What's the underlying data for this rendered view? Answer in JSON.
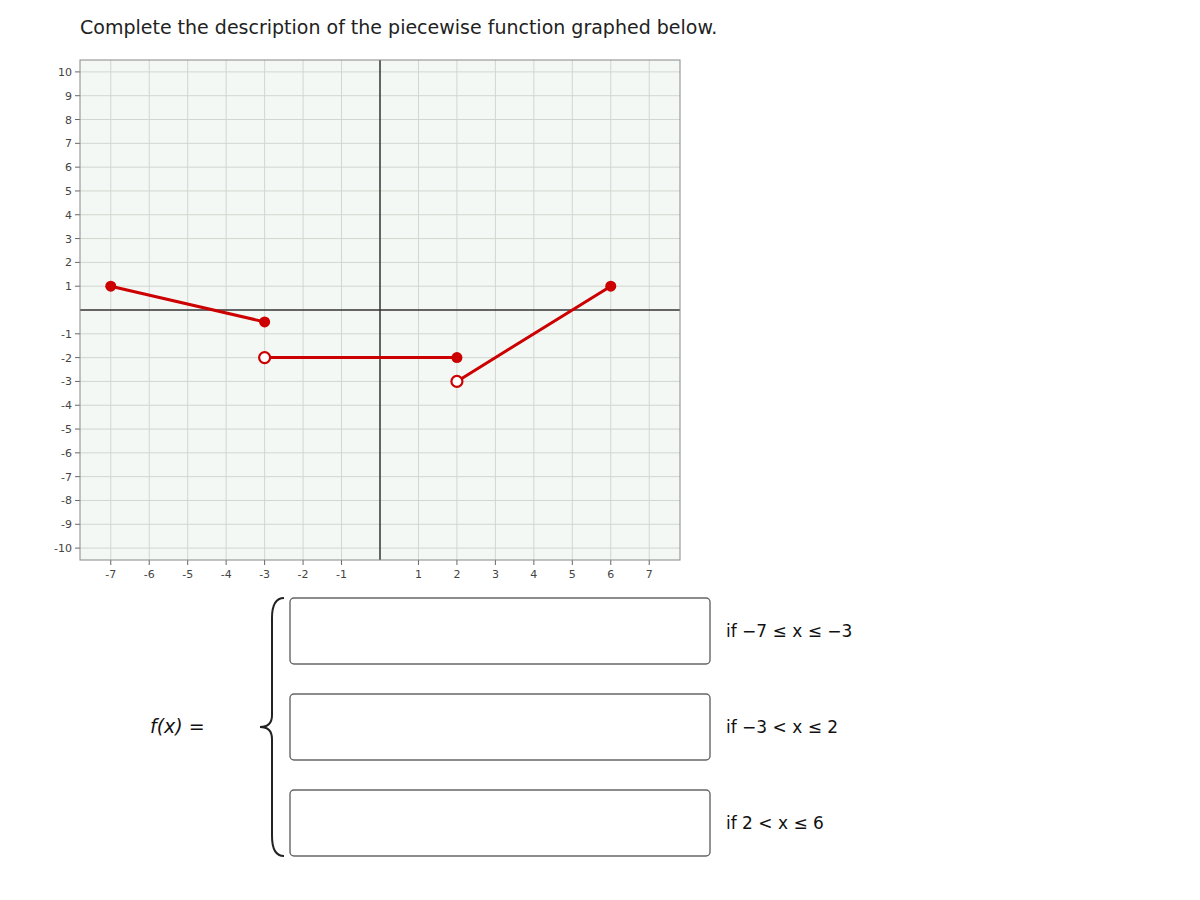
{
  "chart_data": {
    "type": "line",
    "title": "Complete the description of the piecewise function graphed below.",
    "xlim": [
      -7.8,
      7.8
    ],
    "ylim": [
      -10.5,
      10.5
    ],
    "xticks": [
      -7,
      -6,
      -5,
      -4,
      -3,
      -2,
      -1,
      1,
      2,
      3,
      4,
      5,
      6,
      7
    ],
    "yticks": [
      -10,
      -9,
      -8,
      -7,
      -6,
      -5,
      -4,
      -3,
      -2,
      -1,
      1,
      2,
      3,
      4,
      5,
      6,
      7,
      8,
      9,
      10
    ],
    "grid": true,
    "color": "#cc0000",
    "series": [
      {
        "x": [
          -7,
          -3
        ],
        "values": [
          1,
          -0.5
        ],
        "marker": "closed-closed"
      },
      {
        "x": [
          -3,
          2
        ],
        "values": [
          -2,
          -2
        ],
        "marker": "open-closed"
      },
      {
        "x": [
          2,
          6
        ],
        "values": [
          -3,
          1
        ],
        "marker": "open-closed"
      }
    ],
    "function_label": "f(x) =",
    "conditions": [
      "if −7 ≤ x ≤ −3",
      "if −3 < x ≤ 2",
      "if 2 < x ≤ 6"
    ]
  }
}
